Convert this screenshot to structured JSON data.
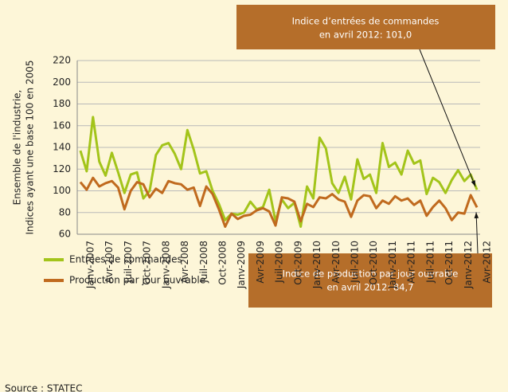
{
  "chart_data": {
    "type": "line",
    "y_label": [
      "Ensemble de l'industrie,",
      "Indices ayant une base 100 en 2005"
    ],
    "categories": [
      "Janv-2007",
      null,
      null,
      "Avr-2007",
      null,
      null,
      "Juil-2007",
      null,
      null,
      "Oct-2007",
      null,
      null,
      "Janv-2008",
      null,
      null,
      "Avr-2008",
      null,
      null,
      "Juil-2008",
      null,
      null,
      "Oct-2008",
      null,
      null,
      "Janv-2009",
      null,
      null,
      "Avr-2009",
      null,
      null,
      "Juil-2009",
      null,
      null,
      "Oct-2009",
      null,
      null,
      "Janv-2010",
      null,
      null,
      "Avr-2010",
      null,
      null,
      "Juil-2010",
      null,
      null,
      "Oct-2010",
      null,
      null,
      "Janv-2011",
      null,
      null,
      "Avr-2011",
      null,
      null,
      "Juil-2011",
      null,
      null,
      "Oct-2011",
      null,
      null,
      "Janv-2012",
      null,
      null,
      "Avr-2012"
    ],
    "series": [
      {
        "name": "Entrées de commandes",
        "color": "#a3c41a",
        "values": [
          137,
          118,
          168,
          127,
          114,
          135,
          117,
          98,
          115,
          117,
          93,
          100,
          133,
          142,
          144,
          134,
          120,
          156,
          138,
          116,
          118,
          100,
          88,
          73,
          79,
          78,
          80,
          90,
          83,
          85,
          101,
          72,
          92,
          84,
          89,
          67,
          104,
          93,
          149,
          139,
          107,
          98,
          113,
          92,
          129,
          111,
          115,
          98,
          144,
          122,
          126,
          115,
          137,
          125,
          128,
          97,
          112,
          108,
          98,
          110,
          119,
          109,
          115,
          101.0
        ]
      },
      {
        "name": "Production par jour ouvrable",
        "color": "#c06a1e",
        "values": [
          108,
          101,
          112,
          104,
          107,
          109,
          103,
          83,
          100,
          108,
          106,
          94,
          102,
          98,
          109,
          107,
          106,
          101,
          103,
          86,
          104,
          97,
          83,
          67,
          79,
          74,
          77,
          78,
          82,
          84,
          81,
          68,
          94,
          93,
          90,
          72,
          88,
          85,
          94,
          93,
          97,
          92,
          90,
          76,
          91,
          96,
          95,
          84,
          91,
          88,
          95,
          91,
          93,
          87,
          91,
          77,
          85,
          91,
          84,
          73,
          80,
          79,
          96,
          84.7
        ]
      }
    ],
    "ylim": [
      60,
      220
    ],
    "yticks": [
      60,
      80,
      100,
      120,
      140,
      160,
      180,
      200,
      220
    ],
    "grid": true,
    "annotations": [
      {
        "lines": [
          "Indice d’entrées de commandes",
          "en avril 2012:  101,0"
        ]
      },
      {
        "lines": [
          "Indice de production par jour ouvrable",
          "en avril 2012: 84,7"
        ]
      }
    ],
    "source": "Source :     STATEC"
  }
}
